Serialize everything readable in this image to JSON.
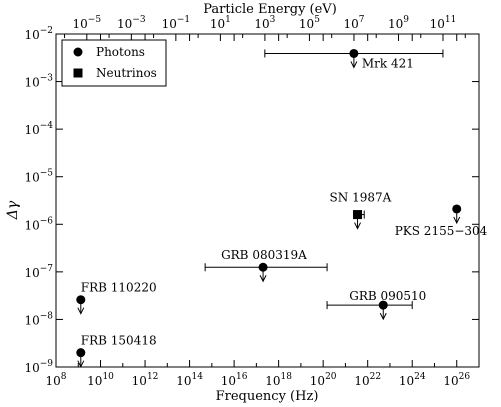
{
  "chart_data": {
    "type": "scatter",
    "title": "",
    "xlabel": "Frequency (Hz)",
    "ylabel": "Δγ",
    "top_xlabel": "Particle Energy (eV)",
    "xscale": "log",
    "yscale": "log",
    "xlim": [
      100000000.0,
      1e+27
    ],
    "ylim": [
      1e-09,
      0.01
    ],
    "grid": false,
    "x_ticks": [
      {
        "value": 100000000.0,
        "base": "10",
        "exp": "8"
      },
      {
        "value": 10000000000.0,
        "base": "10",
        "exp": "10"
      },
      {
        "value": 1000000000000.0,
        "base": "10",
        "exp": "12"
      },
      {
        "value": 100000000000000.0,
        "base": "10",
        "exp": "14"
      },
      {
        "value": 1e+16,
        "base": "10",
        "exp": "16"
      },
      {
        "value": 1e+18,
        "base": "10",
        "exp": "18"
      },
      {
        "value": 1e+20,
        "base": "10",
        "exp": "20"
      },
      {
        "value": 1e+22,
        "base": "10",
        "exp": "22"
      },
      {
        "value": 1e+24,
        "base": "10",
        "exp": "24"
      },
      {
        "value": 1e+26,
        "base": "10",
        "exp": "26"
      }
    ],
    "y_ticks": [
      {
        "value": 1e-09,
        "base": "10",
        "exp": "−9"
      },
      {
        "value": 1e-08,
        "base": "10",
        "exp": "−8"
      },
      {
        "value": 1e-07,
        "base": "10",
        "exp": "−7"
      },
      {
        "value": 1e-06,
        "base": "10",
        "exp": "−6"
      },
      {
        "value": 1e-05,
        "base": "10",
        "exp": "−5"
      },
      {
        "value": 0.0001,
        "base": "10",
        "exp": "−4"
      },
      {
        "value": 0.001,
        "base": "10",
        "exp": "−3"
      },
      {
        "value": 0.01,
        "base": "10",
        "exp": "−2"
      }
    ],
    "top_ticks": [
      {
        "energy": 1e-05,
        "base": "10",
        "exp": "−5"
      },
      {
        "energy": 0.001,
        "base": "10",
        "exp": "−3"
      },
      {
        "energy": 0.1,
        "base": "10",
        "exp": "−1"
      },
      {
        "energy": 10.0,
        "base": "10",
        "exp": "1"
      },
      {
        "energy": 1000.0,
        "base": "10",
        "exp": "3"
      },
      {
        "energy": 100000.0,
        "base": "10",
        "exp": "5"
      },
      {
        "energy": 10000000.0,
        "base": "10",
        "exp": "7"
      },
      {
        "energy": 1000000000.0,
        "base": "10",
        "exp": "9"
      },
      {
        "energy": 100000000000.0,
        "base": "10",
        "exp": "11"
      }
    ],
    "energy_to_frequency": 241800000000000.0,
    "legend": {
      "position": "top-left",
      "entries": [
        {
          "label": "Photons",
          "marker": "circle"
        },
        {
          "label": "Neutrinos",
          "marker": "square"
        }
      ]
    },
    "series": [
      {
        "name": "Photons",
        "marker": "circle",
        "points": [
          {
            "label": "Mrk 421",
            "x": 2.4e+21,
            "y": 0.0039,
            "xerr": [
              2.4e+17,
              2.4e+25
            ],
            "upper_limit": true
          },
          {
            "label": "GRB 080319A",
            "x": 2e+17,
            "y": 1.25e-07,
            "xerr": [
              500000000000000.0,
              1.5e+20
            ],
            "upper_limit": true
          },
          {
            "label": "GRB 090510",
            "x": 5e+22,
            "y": 2e-08,
            "xerr": [
              1.5e+20,
              1e+24
            ],
            "upper_limit": true
          },
          {
            "label": "PKS 2155−304",
            "x": 1e+26,
            "y": 2.1e-06,
            "xerr": null,
            "upper_limit": true
          },
          {
            "label": "FRB 110220",
            "x": 1300000000.0,
            "y": 2.6e-08,
            "xerr": null,
            "upper_limit": true
          },
          {
            "label": "FRB 150418",
            "x": 1300000000.0,
            "y": 2e-09,
            "xerr": null,
            "upper_limit": true
          }
        ]
      },
      {
        "name": "Neutrinos",
        "marker": "square",
        "points": [
          {
            "label": "SN 1987A",
            "x": 3.5e+21,
            "y": 1.6e-06,
            "xerr": [
              2.4e+21,
              7e+21
            ],
            "upper_limit": true
          }
        ]
      }
    ]
  }
}
